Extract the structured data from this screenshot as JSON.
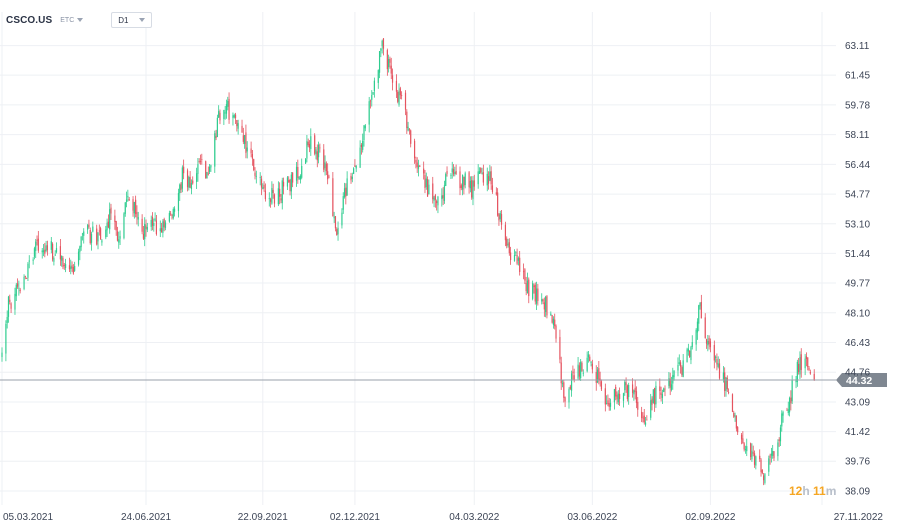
{
  "header": {
    "symbol": "CSCO.US",
    "market": "ETC",
    "timeframe": "D1"
  },
  "countdown": {
    "hours": "12",
    "hours_unit": "h",
    "minutes": "11",
    "minutes_unit": "m"
  },
  "colors": {
    "up": "#2ecc8f",
    "down": "#e5535f",
    "grid": "#eef0f4",
    "price_line": "#9aa1ab",
    "price_label_bg": "#7f8791"
  },
  "chart_data": {
    "type": "candlestick",
    "title": "",
    "xlabel": "",
    "ylabel": "",
    "ylim": [
      37.3,
      65.0
    ],
    "grid": true,
    "y_ticks": [
      "38.09",
      "39.76",
      "41.42",
      "43.09",
      "44.76",
      "46.43",
      "48.10",
      "49.77",
      "51.44",
      "53.10",
      "54.77",
      "56.44",
      "58.11",
      "59.78",
      "61.45",
      "63.11"
    ],
    "y_tick_values": [
      38.09,
      39.76,
      41.42,
      43.09,
      44.76,
      46.43,
      48.1,
      49.77,
      51.44,
      53.1,
      54.77,
      56.44,
      58.11,
      59.78,
      61.45,
      63.11
    ],
    "x_ticks": [
      "05.03.2021",
      "24.06.2021",
      "22.09.2021",
      "02.12.2021",
      "04.03.2022",
      "03.06.2022",
      "02.09.2022",
      "27.11.2022"
    ],
    "current_price": 44.32,
    "current_price_label": "44.32",
    "x_start": "2021-03-05",
    "x_end": "2022-11-27",
    "close_path": [
      [
        "2021-03-05",
        45.5
      ],
      [
        "2021-03-10",
        48.5
      ],
      [
        "2021-03-18",
        49.5
      ],
      [
        "2021-03-25",
        50.5
      ],
      [
        "2021-04-01",
        52.0
      ],
      [
        "2021-04-08",
        51.8
      ],
      [
        "2021-04-15",
        51.5
      ],
      [
        "2021-04-22",
        51.0
      ],
      [
        "2021-04-29",
        50.6
      ],
      [
        "2021-05-06",
        52.8
      ],
      [
        "2021-05-13",
        52.5
      ],
      [
        "2021-05-20",
        52.3
      ],
      [
        "2021-05-27",
        53.5
      ],
      [
        "2021-06-03",
        52.5
      ],
      [
        "2021-06-10",
        54.5
      ],
      [
        "2021-06-17",
        53.5
      ],
      [
        "2021-06-24",
        52.5
      ],
      [
        "2021-07-01",
        53.0
      ],
      [
        "2021-07-08",
        53.2
      ],
      [
        "2021-07-15",
        53.5
      ],
      [
        "2021-07-22",
        55.8
      ],
      [
        "2021-07-29",
        55.5
      ],
      [
        "2021-08-05",
        56.2
      ],
      [
        "2021-08-12",
        56.0
      ],
      [
        "2021-08-19",
        59.0
      ],
      [
        "2021-08-26",
        59.5
      ],
      [
        "2021-09-02",
        58.8
      ],
      [
        "2021-09-09",
        57.5
      ],
      [
        "2021-09-16",
        56.0
      ],
      [
        "2021-09-23",
        55.0
      ],
      [
        "2021-09-30",
        54.5
      ],
      [
        "2021-10-07",
        55.0
      ],
      [
        "2021-10-14",
        55.5
      ],
      [
        "2021-10-21",
        56.2
      ],
      [
        "2021-10-28",
        57.8
      ],
      [
        "2021-11-04",
        57.0
      ],
      [
        "2021-11-11",
        56.0
      ],
      [
        "2021-11-18",
        52.5
      ],
      [
        "2021-11-25",
        55.0
      ],
      [
        "2021-12-02",
        56.5
      ],
      [
        "2021-12-09",
        58.5
      ],
      [
        "2021-12-16",
        61.0
      ],
      [
        "2021-12-23",
        63.2
      ],
      [
        "2021-12-30",
        61.5
      ],
      [
        "2022-01-06",
        60.0
      ],
      [
        "2022-01-13",
        58.5
      ],
      [
        "2022-01-20",
        56.0
      ],
      [
        "2022-01-27",
        55.0
      ],
      [
        "2022-02-03",
        54.0
      ],
      [
        "2022-02-10",
        55.5
      ],
      [
        "2022-02-17",
        55.8
      ],
      [
        "2022-02-24",
        55.5
      ],
      [
        "2022-03-03",
        55.0
      ],
      [
        "2022-03-10",
        56.0
      ],
      [
        "2022-03-17",
        55.5
      ],
      [
        "2022-03-24",
        53.5
      ],
      [
        "2022-03-31",
        51.5
      ],
      [
        "2022-04-07",
        51.0
      ],
      [
        "2022-04-14",
        49.5
      ],
      [
        "2022-04-21",
        49.0
      ],
      [
        "2022-04-28",
        48.5
      ],
      [
        "2022-05-05",
        47.5
      ],
      [
        "2022-05-12",
        43.5
      ],
      [
        "2022-05-19",
        44.5
      ],
      [
        "2022-05-26",
        45.0
      ],
      [
        "2022-06-02",
        45.5
      ],
      [
        "2022-06-09",
        44.0
      ],
      [
        "2022-06-16",
        43.0
      ],
      [
        "2022-06-23",
        43.5
      ],
      [
        "2022-06-30",
        43.8
      ],
      [
        "2022-07-07",
        43.0
      ],
      [
        "2022-07-14",
        42.0
      ],
      [
        "2022-07-21",
        43.5
      ],
      [
        "2022-07-28",
        44.0
      ],
      [
        "2022-08-04",
        44.5
      ],
      [
        "2022-08-11",
        45.0
      ],
      [
        "2022-08-18",
        46.0
      ],
      [
        "2022-08-25",
        48.5
      ],
      [
        "2022-09-01",
        46.0
      ],
      [
        "2022-09-08",
        44.8
      ],
      [
        "2022-09-15",
        44.0
      ],
      [
        "2022-09-22",
        42.0
      ],
      [
        "2022-09-29",
        40.5
      ],
      [
        "2022-10-06",
        40.0
      ],
      [
        "2022-10-13",
        39.0
      ],
      [
        "2022-10-20",
        40.0
      ],
      [
        "2022-10-27",
        42.0
      ],
      [
        "2022-11-03",
        43.5
      ],
      [
        "2022-11-10",
        45.5
      ],
      [
        "2022-11-17",
        45.0
      ],
      [
        "2022-11-21",
        44.32
      ]
    ]
  }
}
